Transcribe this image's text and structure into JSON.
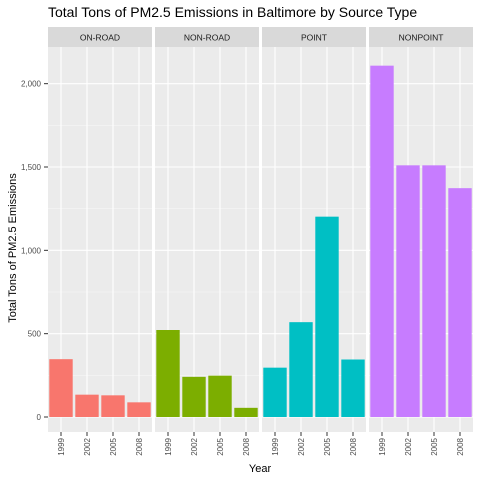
{
  "chart_data": {
    "type": "bar",
    "title": "Total Tons of PM2.5 Emissions in Baltimore by Source Type",
    "xlabel": "Year",
    "ylabel": "Total Tons of PM2.5 Emissions",
    "categories": [
      "1999",
      "2002",
      "2005",
      "2008"
    ],
    "ylim": [
      -90,
      2220
    ],
    "y_ticks": [
      0,
      500,
      1000,
      1500,
      2000
    ],
    "y_tick_labels": [
      "0",
      "500",
      "1,000",
      "1,500",
      "2,000"
    ],
    "grid": true,
    "facets": [
      {
        "name": "ON-ROAD",
        "color": "#F8766D",
        "values": [
          347,
          134,
          130,
          88
        ]
      },
      {
        "name": "NON-ROAD",
        "color": "#7CAE00",
        "values": [
          522,
          241,
          248,
          55
        ]
      },
      {
        "name": "POINT",
        "color": "#00BFC4",
        "values": [
          296,
          569,
          1202,
          345
        ]
      },
      {
        "name": "NONPOINT",
        "color": "#C77CFF",
        "values": [
          2108,
          1510,
          1510,
          1373
        ]
      }
    ]
  }
}
